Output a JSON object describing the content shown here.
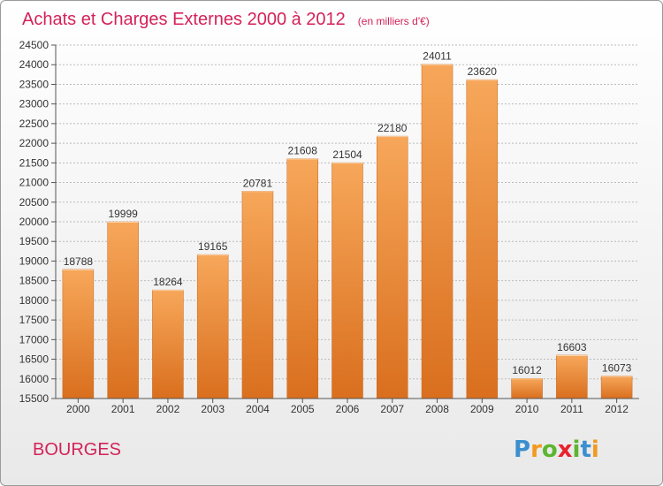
{
  "title": "Achats et Charges Externes 2000 à 2012",
  "subtitle": "(en milliers d'€)",
  "city": "BOURGES",
  "logo": {
    "text": "Proxiti",
    "letters": [
      "P",
      "r",
      "o",
      "x",
      "i",
      "t",
      "i"
    ],
    "colors": [
      "#3b8fd0",
      "#f29a1f",
      "#5cb531",
      "#e8222e",
      "#5cb531",
      "#3b8fd0",
      "#f29a1f"
    ]
  },
  "colors": {
    "title": "#d4225a",
    "bar_top": "#f7a75a",
    "bar_bottom": "#d96f1e",
    "grid": "#bbbbbb"
  },
  "chart_data": {
    "type": "bar",
    "categories": [
      "2000",
      "2001",
      "2002",
      "2003",
      "2004",
      "2005",
      "2006",
      "2007",
      "2008",
      "2009",
      "2010",
      "2011",
      "2012"
    ],
    "values": [
      18788,
      19999,
      18264,
      19165,
      20781,
      21608,
      21504,
      22180,
      24011,
      23620,
      16012,
      16603,
      16073
    ],
    "ylim": [
      15500,
      24500
    ],
    "yticks": [
      15500,
      16000,
      16500,
      17000,
      17500,
      18000,
      18500,
      19000,
      19500,
      20000,
      20500,
      21000,
      21500,
      22000,
      22500,
      23000,
      23500,
      24000,
      24500
    ],
    "grid": true,
    "data_labels": true
  }
}
